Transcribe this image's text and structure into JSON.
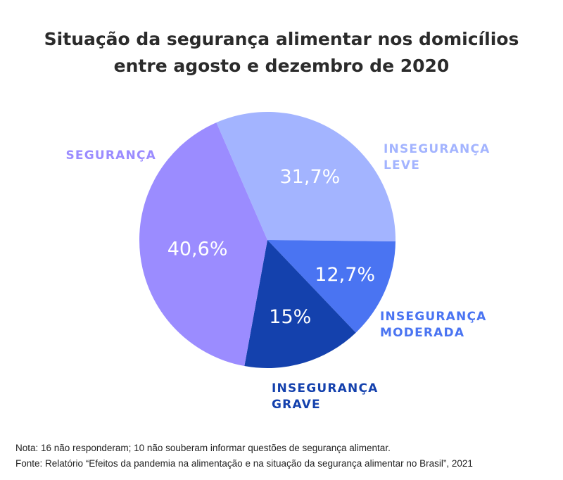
{
  "chart_data": {
    "type": "pie",
    "title_lines": [
      "Situação da segurança alimentar nos domicílios",
      "entre agosto e dezembro de 2020"
    ],
    "slices": [
      {
        "label_lines": [
          "INSEGURANÇA",
          "LEVE"
        ],
        "value": 31.7,
        "value_label": "31,7%",
        "color": "#a3b4ff",
        "label_color": "#a3b4ff"
      },
      {
        "label_lines": [
          "INSEGURANÇA",
          "MODERADA"
        ],
        "value": 12.7,
        "value_label": "12,7%",
        "color": "#4a74f2",
        "label_color": "#4a74f2"
      },
      {
        "label_lines": [
          "INSEGURANÇA",
          "GRAVE"
        ],
        "value": 15,
        "value_label": "15%",
        "color": "#1441ad",
        "label_color": "#1441ad"
      },
      {
        "label_lines": [
          "SEGURANÇA"
        ],
        "value": 40.6,
        "value_label": "40,6%",
        "color": "#9b8cff",
        "label_color": "#9b8cff"
      }
    ],
    "note": "Nota: 16 não responderam; 10 não souberam informar questões de segurança alimentar.",
    "source": "Fonte: Relatório “Efeitos da pandemia na alimentação e na situação da segurança alimentar no Brasil”, 2021"
  }
}
